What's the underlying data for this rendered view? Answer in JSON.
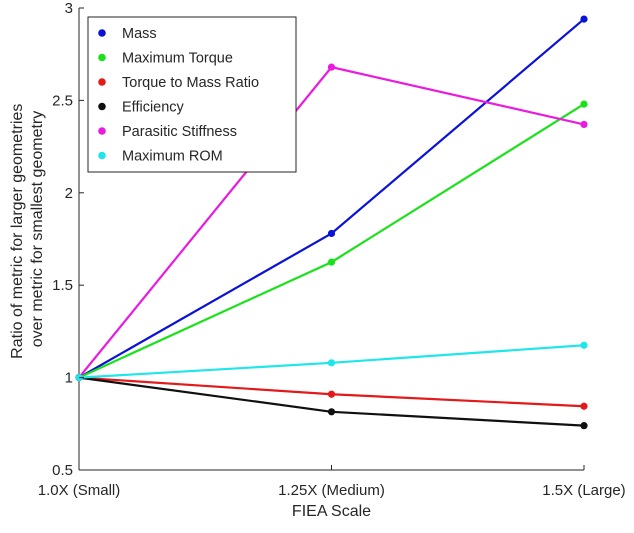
{
  "chart_data": {
    "type": "line",
    "x": [
      "1.0X (Small)",
      "1.25X (Medium)",
      "1.5X (Large)"
    ],
    "xlabel": "FIEA Scale",
    "ylabel_lines": [
      "Ratio of metric for larger geometries",
      "over metric for smallest geometry"
    ],
    "ylim": [
      0.5,
      3
    ],
    "yticks": [
      "0.5",
      "1",
      "1.5",
      "2",
      "2.5",
      "3"
    ],
    "grid": false,
    "legend_position": "top-left",
    "series": [
      {
        "name": "Mass",
        "color": "#0a12d8",
        "values": [
          1.0,
          1.78,
          2.94
        ]
      },
      {
        "name": "Maximum Torque",
        "color": "#1ae21a",
        "values": [
          1.0,
          1.625,
          2.48
        ]
      },
      {
        "name": "Torque to Mass Ratio",
        "color": "#e21a1a",
        "values": [
          1.0,
          0.91,
          0.845
        ]
      },
      {
        "name": "Efficiency",
        "color": "#101010",
        "values": [
          1.0,
          0.815,
          0.74
        ]
      },
      {
        "name": "Parasitic Stiffness",
        "color": "#ea1ae0",
        "values": [
          1.0,
          2.68,
          2.37
        ]
      },
      {
        "name": "Maximum ROM",
        "color": "#1ee6ea",
        "values": [
          1.0,
          1.08,
          1.175
        ]
      }
    ]
  }
}
